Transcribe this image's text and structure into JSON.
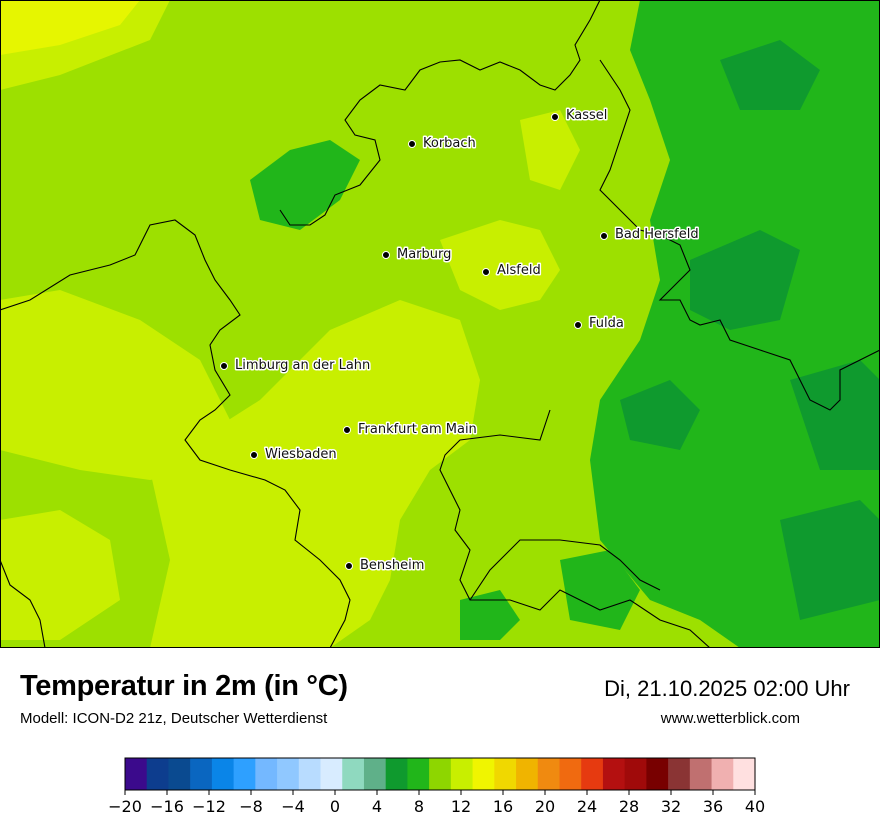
{
  "map": {
    "cities": [
      {
        "name": "Kassel"
      },
      {
        "name": "Korbach"
      },
      {
        "name": "Bad Hersfeld"
      },
      {
        "name": "Marburg"
      },
      {
        "name": "Alsfeld"
      },
      {
        "name": "Fulda"
      },
      {
        "name": "Limburg an der Lahn"
      },
      {
        "name": "Frankfurt am Main"
      },
      {
        "name": "Wiesbaden"
      },
      {
        "name": "Bensheim"
      }
    ]
  },
  "header": {
    "title": "Temperatur in 2m (in °C)",
    "model": "Modell: ICON-D2 21z, Deutscher Wetterdienst",
    "datetime": "Di, 21.10.2025 02:00 Uhr",
    "website": "www.wetterblick.com"
  },
  "legend": {
    "colors": [
      "#3b0a8c",
      "#0d3d8e",
      "#0a4a90",
      "#0a66c0",
      "#0a85e8",
      "#2ea0ff",
      "#74b8ff",
      "#90c8ff",
      "#b8dcff",
      "#d8ecff",
      "#8fd9bf",
      "#5fb089",
      "#0f9a2e",
      "#21b61a",
      "#8ed600",
      "#c8ef00",
      "#f0f500",
      "#f0d800",
      "#f0b400",
      "#f08a10",
      "#f06a10",
      "#e63a10",
      "#b41010",
      "#a00a0a",
      "#780000",
      "#8a3434",
      "#c07070",
      "#f0b0b0",
      "#ffe0e0"
    ],
    "ticks": [
      "−20",
      "−16",
      "−12",
      "−8",
      "−4",
      "0",
      "4",
      "8",
      "12",
      "16",
      "20",
      "24",
      "28",
      "32",
      "36",
      "40"
    ]
  }
}
